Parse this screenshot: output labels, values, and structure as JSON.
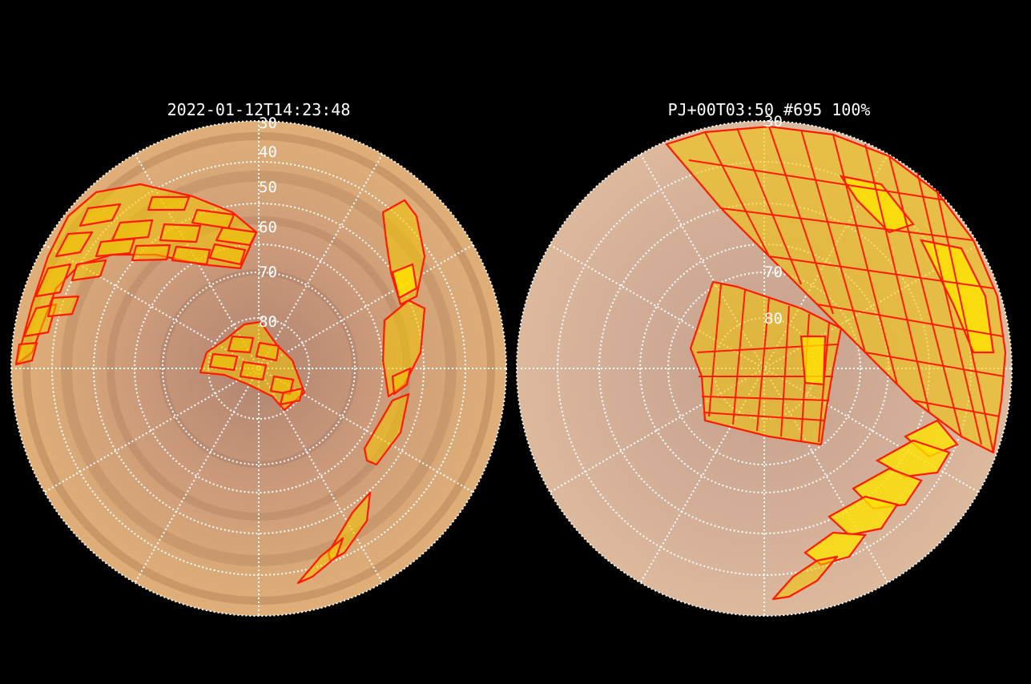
{
  "panels": [
    {
      "title": "2022-01-12T14:23:48",
      "lat_labels": [
        "30",
        "40",
        "50",
        "60",
        "70",
        "80"
      ]
    },
    {
      "title": "PJ+00T03:50 #695 100%",
      "lat_labels": [
        "30",
        "70",
        "80"
      ]
    }
  ],
  "colors": {
    "background": "#000000",
    "disk_outer": "#d9a879",
    "disk_inner": "#b98a70",
    "footprint_fill": "#f2c400",
    "footprint_edge": "#ff1a00",
    "grid": "#ffffff"
  }
}
